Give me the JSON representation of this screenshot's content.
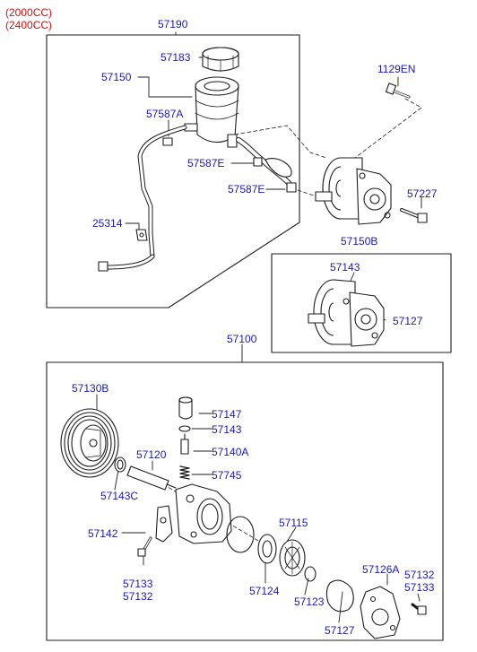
{
  "engine_labels": [
    "(2000CC)",
    "(2400CC)"
  ],
  "colors": {
    "part_label": "#1a1aa8",
    "engine_label": "#cc1010",
    "line": "#1c1c1c",
    "shade": "#8c8c8c"
  },
  "parts": {
    "p57190": "57190",
    "p57183": "57183",
    "p57150": "57150",
    "p57587a": "57587A",
    "p57587e_1": "57587E",
    "p57587e_2": "57587E",
    "p25314": "25314",
    "p1129en": "1129EN",
    "p57227": "57227",
    "p57150b": "57150B",
    "p57143_top": "57143",
    "p57127_top": "57127",
    "p57100": "57100",
    "p57130b": "57130B",
    "p57147": "57147",
    "p57143": "57143",
    "p57140a": "57140A",
    "p57120": "57120",
    "p57745": "57745",
    "p57143c": "57143C",
    "p57115": "57115",
    "p57142": "57142",
    "p57126a": "57126A",
    "p57132_r": "57132",
    "p57133_r": "57133",
    "p57133_l": "57133",
    "p57132_l": "57132",
    "p57124": "57124",
    "p57123": "57123",
    "p57127_bot": "57127"
  }
}
